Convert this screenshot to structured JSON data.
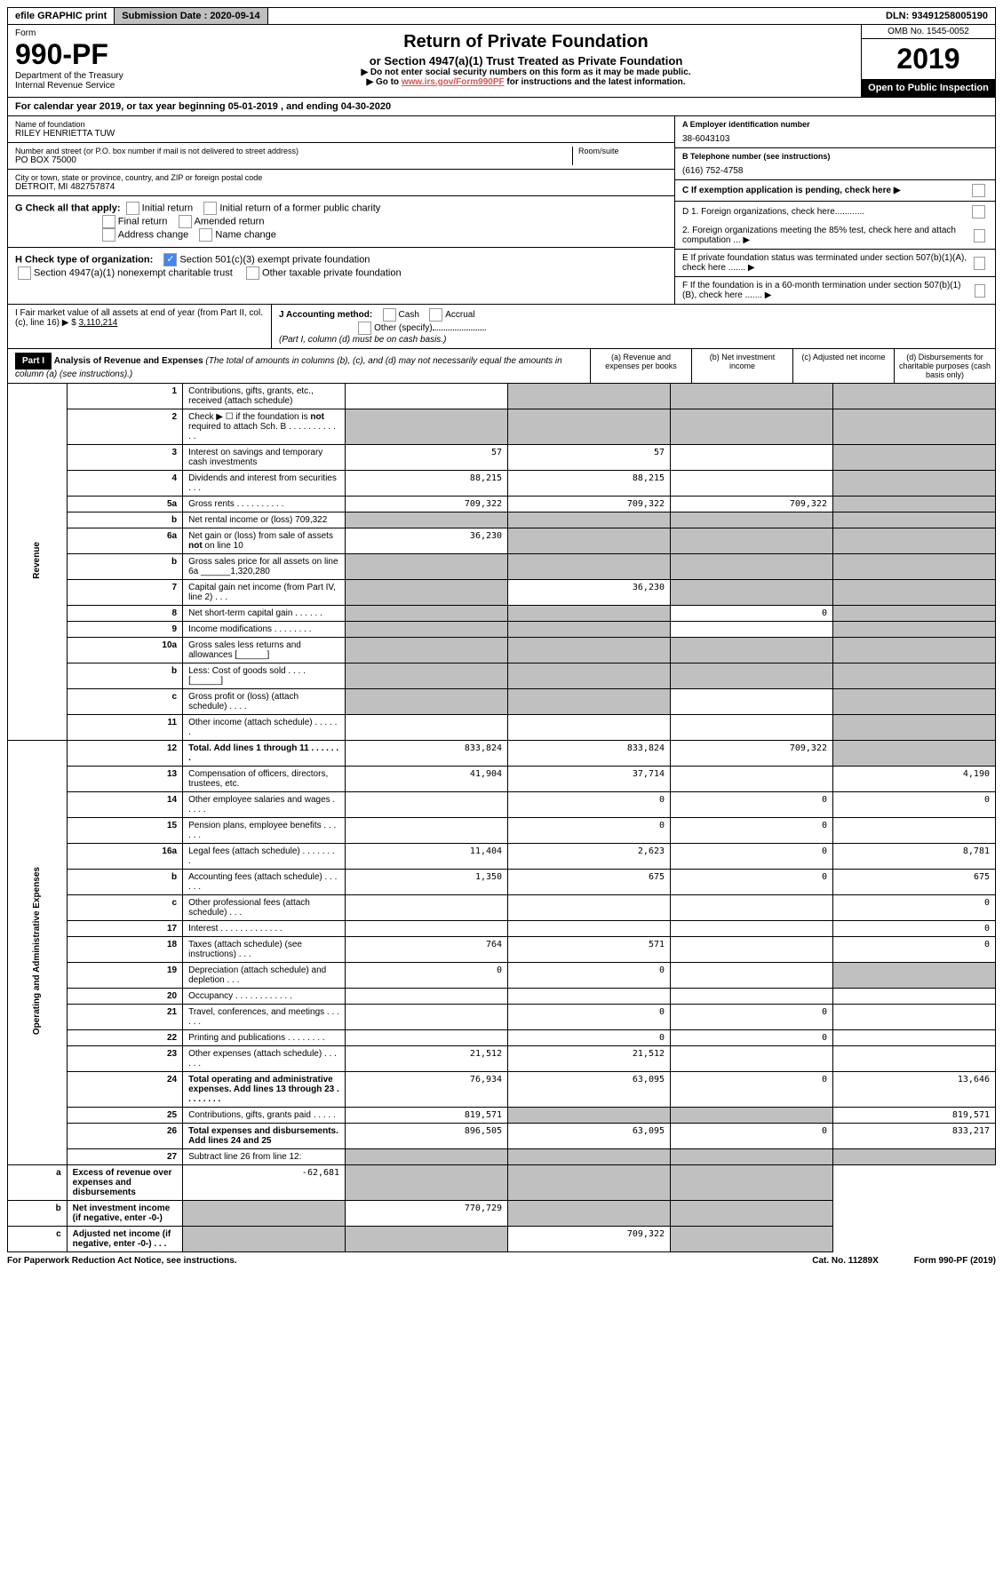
{
  "topbar": {
    "efile": "efile GRAPHIC print",
    "submission": "Submission Date : 2020-09-14",
    "dln": "DLN: 93491258005190"
  },
  "header": {
    "form_label": "Form",
    "form_number": "990-PF",
    "dept1": "Department of the Treasury",
    "dept2": "Internal Revenue Service",
    "title": "Return of Private Foundation",
    "subtitle": "or Section 4947(a)(1) Trust Treated as Private Foundation",
    "note1": "▶ Do not enter social security numbers on this form as it may be made public.",
    "note2_pre": "▶ Go to ",
    "note2_link": "www.irs.gov/Form990PF",
    "note2_post": " for instructions and the latest information.",
    "omb": "OMB No. 1545-0052",
    "year": "2019",
    "open": "Open to Public Inspection"
  },
  "calyear": "For calendar year 2019, or tax year beginning 05-01-2019                       , and ending 04-30-2020",
  "name_label": "Name of foundation",
  "name": "RILEY HENRIETTA TUW",
  "ein_label": "A Employer identification number",
  "ein": "38-6043103",
  "addr_label": "Number and street (or P.O. box number if mail is not delivered to street address)",
  "addr": "PO BOX 75000",
  "room_label": "Room/suite",
  "tel_label": "B Telephone number (see instructions)",
  "tel": "(616) 752-4758",
  "city_label": "City or town, state or province, country, and ZIP or foreign postal code",
  "city": "DETROIT, MI  482757874",
  "c_label": "C If exemption application is pending, check here ▶",
  "g_label": "G Check all that apply:",
  "g_opts": [
    "Initial return",
    "Initial return of a former public charity",
    "Final return",
    "Amended return",
    "Address change",
    "Name change"
  ],
  "h_label": "H Check type of organization:",
  "h_opts": [
    "Section 501(c)(3) exempt private foundation",
    "Section 4947(a)(1) nonexempt charitable trust",
    "Other taxable private foundation"
  ],
  "d1": "D 1. Foreign organizations, check here............",
  "d2": "2. Foreign organizations meeting the 85% test, check here and attach computation ... ▶",
  "e": "E  If private foundation status was terminated under section 507(b)(1)(A), check here ....... ▶",
  "f": "F  If the foundation is in a 60-month termination under section 507(b)(1)(B), check here ....... ▶",
  "i_label": "I Fair market value of all assets at end of year (from Part II, col. (c), line 16) ▶ $",
  "i_val": "3,110,214",
  "j_label": "J Accounting method:",
  "j_cash": "Cash",
  "j_accrual": "Accrual",
  "j_other": "Other (specify)",
  "j_note": "(Part I, column (d) must be on cash basis.)",
  "part1": {
    "tag": "Part I",
    "title": "Analysis of Revenue and Expenses",
    "note": "(The total of amounts in columns (b), (c), and (d) may not necessarily equal the amounts in column (a) (see instructions).)",
    "cols": [
      "(a)   Revenue and expenses per books",
      "(b)  Net investment income",
      "(c)  Adjusted net income",
      "(d)  Disbursements for charitable purposes (cash basis only)"
    ]
  },
  "vert_rev": "Revenue",
  "vert_exp": "Operating and Administrative Expenses",
  "rows": [
    {
      "n": "1",
      "d": "Contributions, gifts, grants, etc., received (attach schedule)",
      "a": "",
      "b": "$shade",
      "c": "$shade",
      "e": "$shade"
    },
    {
      "n": "2",
      "d": "Check ▶ ☐ if the foundation is not required to attach Sch. B   .   .   .   .   .   .   .   .   .   .   .   .",
      "a": "$shade",
      "b": "$shade",
      "c": "$shade",
      "e": "$shade"
    },
    {
      "n": "3",
      "d": "Interest on savings and temporary cash investments",
      "a": "57",
      "b": "57",
      "c": "",
      "e": "$shade"
    },
    {
      "n": "4",
      "d": "Dividends and interest from securities   .   .   .",
      "a": "88,215",
      "b": "88,215",
      "c": "",
      "e": "$shade"
    },
    {
      "n": "5a",
      "d": "Gross rents   .   .   .   .   .   .   .   .   .   .",
      "a": "709,322",
      "b": "709,322",
      "c": "709,322",
      "e": "$shade"
    },
    {
      "n": "b",
      "d": "Net rental income or (loss)                                     709,322",
      "a": "$shade",
      "b": "$shade",
      "c": "$shade",
      "e": "$shade"
    },
    {
      "n": "6a",
      "d": "Net gain or (loss) from sale of assets not on line 10",
      "a": "36,230",
      "b": "$shade",
      "c": "$shade",
      "e": "$shade"
    },
    {
      "n": "b",
      "d": "Gross sales price for all assets on line 6a ______1,320,280",
      "a": "$shade",
      "b": "$shade",
      "c": "$shade",
      "e": "$shade"
    },
    {
      "n": "7",
      "d": "Capital gain net income (from Part IV, line 2)   .   .   .",
      "a": "$shade",
      "b": "36,230",
      "c": "$shade",
      "e": "$shade"
    },
    {
      "n": "8",
      "d": "Net short-term capital gain   .   .   .   .   .   .",
      "a": "$shade",
      "b": "$shade",
      "c": "0",
      "e": "$shade"
    },
    {
      "n": "9",
      "d": "Income modifications   .   .   .   .   .   .   .   .",
      "a": "$shade",
      "b": "$shade",
      "c": "",
      "e": "$shade"
    },
    {
      "n": "10a",
      "d": "Gross sales less returns and allowances  [______]",
      "a": "$shade",
      "b": "$shade",
      "c": "$shade",
      "e": "$shade"
    },
    {
      "n": "b",
      "d": "Less: Cost of goods sold   .   .   .   .  [______]",
      "a": "$shade",
      "b": "$shade",
      "c": "$shade",
      "e": "$shade"
    },
    {
      "n": "c",
      "d": "Gross profit or (loss) (attach schedule)   .   .   .   .",
      "a": "$shade",
      "b": "$shade",
      "c": "",
      "e": "$shade"
    },
    {
      "n": "11",
      "d": "Other income (attach schedule)   .   .   .   .   .   .",
      "a": "",
      "b": "",
      "c": "",
      "e": "$shade"
    },
    {
      "n": "12",
      "d": "Total. Add lines 1 through 11   .   .   .   .   .   .   .",
      "a": "833,824",
      "b": "833,824",
      "c": "709,322",
      "e": "$shade",
      "bold": true
    },
    {
      "n": "13",
      "d": "Compensation of officers, directors, trustees, etc.",
      "a": "41,904",
      "b": "37,714",
      "c": "",
      "e": "4,190"
    },
    {
      "n": "14",
      "d": "Other employee salaries and wages   .   .   .   .   .",
      "a": "",
      "b": "0",
      "c": "0",
      "e": "0"
    },
    {
      "n": "15",
      "d": "Pension plans, employee benefits   .   .   .   .   .   .",
      "a": "",
      "b": "0",
      "c": "0",
      "e": ""
    },
    {
      "n": "16a",
      "d": "Legal fees (attach schedule)   .   .   .   .   .   .   .   .",
      "a": "11,404",
      "b": "2,623",
      "c": "0",
      "e": "8,781"
    },
    {
      "n": "b",
      "d": "Accounting fees (attach schedule)   .   .   .   .   .   .",
      "a": "1,350",
      "b": "675",
      "c": "0",
      "e": "675"
    },
    {
      "n": "c",
      "d": "Other professional fees (attach schedule)   .   .   .",
      "a": "",
      "b": "",
      "c": "",
      "e": "0"
    },
    {
      "n": "17",
      "d": "Interest   .   .   .   .   .   .   .   .   .   .   .   .   .",
      "a": "",
      "b": "",
      "c": "",
      "e": "0"
    },
    {
      "n": "18",
      "d": "Taxes (attach schedule) (see instructions)   .   .   .",
      "a": "764",
      "b": "571",
      "c": "",
      "e": "0"
    },
    {
      "n": "19",
      "d": "Depreciation (attach schedule) and depletion   .   .   .",
      "a": "0",
      "b": "0",
      "c": "",
      "e": "$shade"
    },
    {
      "n": "20",
      "d": "Occupancy   .   .   .   .   .   .   .   .   .   .   .   .",
      "a": "",
      "b": "",
      "c": "",
      "e": ""
    },
    {
      "n": "21",
      "d": "Travel, conferences, and meetings   .   .   .   .   .   .",
      "a": "",
      "b": "0",
      "c": "0",
      "e": ""
    },
    {
      "n": "22",
      "d": "Printing and publications   .   .   .   .   .   .   .   .",
      "a": "",
      "b": "0",
      "c": "0",
      "e": ""
    },
    {
      "n": "23",
      "d": "Other expenses (attach schedule)   .   .   .   .   .   .",
      "a": "21,512",
      "b": "21,512",
      "c": "",
      "e": ""
    },
    {
      "n": "24",
      "d": "Total operating and administrative expenses. Add lines 13 through 23   .   .   .   .   .   .   .   .",
      "a": "76,934",
      "b": "63,095",
      "c": "0",
      "e": "13,646",
      "bold": true
    },
    {
      "n": "25",
      "d": "Contributions, gifts, grants paid   .   .   .   .   .",
      "a": "819,571",
      "b": "$shade",
      "c": "$shade",
      "e": "819,571"
    },
    {
      "n": "26",
      "d": "Total expenses and disbursements. Add lines 24 and 25",
      "a": "896,505",
      "b": "63,095",
      "c": "0",
      "e": "833,217",
      "bold": true
    },
    {
      "n": "27",
      "d": "Subtract line 26 from line 12:",
      "a": "$shade",
      "b": "$shade",
      "c": "$shade",
      "e": "$shade"
    },
    {
      "n": "a",
      "d": "Excess of revenue over expenses and disbursements",
      "a": "-62,681",
      "b": "$shade",
      "c": "$shade",
      "e": "$shade",
      "bold": true
    },
    {
      "n": "b",
      "d": "Net investment income (if negative, enter -0-)",
      "a": "$shade",
      "b": "770,729",
      "c": "$shade",
      "e": "$shade",
      "bold": true
    },
    {
      "n": "c",
      "d": "Adjusted net income (if negative, enter -0-)   .   .   .",
      "a": "$shade",
      "b": "$shade",
      "c": "709,322",
      "e": "$shade",
      "bold": true
    }
  ],
  "footer": {
    "left": "For Paperwork Reduction Act Notice, see instructions.",
    "mid": "Cat. No. 11289X",
    "right": "Form 990-PF (2019)"
  }
}
